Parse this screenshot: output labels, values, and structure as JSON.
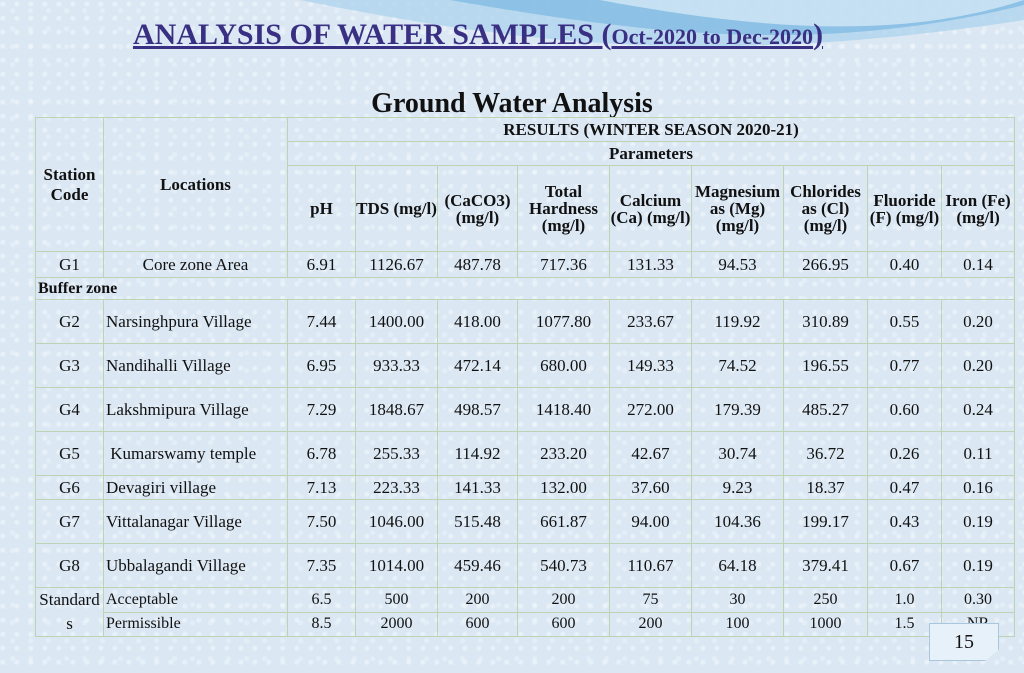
{
  "title": {
    "main": "ANALYSIS OF WATER SAMPLES (",
    "range": "Oct-2020 to Dec-2020",
    "close": ")"
  },
  "subtitle": "Ground Water Analysis",
  "header": {
    "station_code": "Station Code",
    "locations": "Locations",
    "results": "RESULTS (WINTER SEASON 2020-21)",
    "parameters": "Parameters",
    "cols": [
      "pH",
      "TDS (mg/l)",
      "(CaCO3) (mg/l)",
      "Total Hardness (mg/l)",
      "Calcium (Ca) (mg/l)",
      "Magnesium as (Mg) (mg/l)",
      "Chlorides as (Cl) (mg/l)",
      "Fluoride (F) (mg/l)",
      "Iron (Fe) (mg/l)"
    ]
  },
  "buffer_zone": "Buffer zone",
  "rows": [
    {
      "code": "G1",
      "location": "Core zone Area",
      "vals": [
        "6.91",
        "1126.67",
        "487.78",
        "717.36",
        "131.33",
        "94.53",
        "266.95",
        "0.40",
        "0.14"
      ]
    },
    {
      "code": "G2",
      "location": "Narsinghpura Village",
      "vals": [
        "7.44",
        "1400.00",
        "418.00",
        "1077.80",
        "233.67",
        "119.92",
        "310.89",
        "0.55",
        "0.20"
      ]
    },
    {
      "code": "G3",
      "location": "Nandihalli Village",
      "vals": [
        "6.95",
        "933.33",
        "472.14",
        "680.00",
        "149.33",
        "74.52",
        "196.55",
        "0.77",
        "0.20"
      ]
    },
    {
      "code": "G4",
      "location": "Lakshmipura Village",
      "vals": [
        "7.29",
        "1848.67",
        "498.57",
        "1418.40",
        "272.00",
        "179.39",
        "485.27",
        "0.60",
        "0.24"
      ]
    },
    {
      "code": "G5",
      "location": " Kumarswamy temple",
      "vals": [
        "6.78",
        "255.33",
        "114.92",
        "233.20",
        "42.67",
        "30.74",
        "36.72",
        "0.26",
        "0.11"
      ]
    },
    {
      "code": "G6",
      "location": "Devagiri village",
      "vals": [
        "7.13",
        "223.33",
        "141.33",
        "132.00",
        "37.60",
        "9.23",
        "18.37",
        "0.47",
        "0.16"
      ]
    },
    {
      "code": "G7",
      "location": "Vittalanagar Village",
      "vals": [
        "7.50",
        "1046.00",
        "515.48",
        "661.87",
        "94.00",
        "104.36",
        "199.17",
        "0.43",
        "0.19"
      ]
    },
    {
      "code": "G8",
      "location": "Ubbalagandi Village",
      "vals": [
        "7.35",
        "1014.00",
        "459.46",
        "540.73",
        "110.67",
        "64.18",
        "379.41",
        "0.67",
        "0.19"
      ]
    }
  ],
  "standards": {
    "label": "Standards",
    "acceptable": {
      "label": "Acceptable",
      "vals": [
        "6.5",
        "500",
        "200",
        "200",
        "75",
        "30",
        "250",
        "1.0",
        "0.30"
      ]
    },
    "permissible": {
      "label": "Permissible",
      "vals": [
        "8.5",
        "2000",
        "600",
        "600",
        "200",
        "100",
        "1000",
        "1.5",
        "NR"
      ]
    }
  },
  "page_number": "15"
}
